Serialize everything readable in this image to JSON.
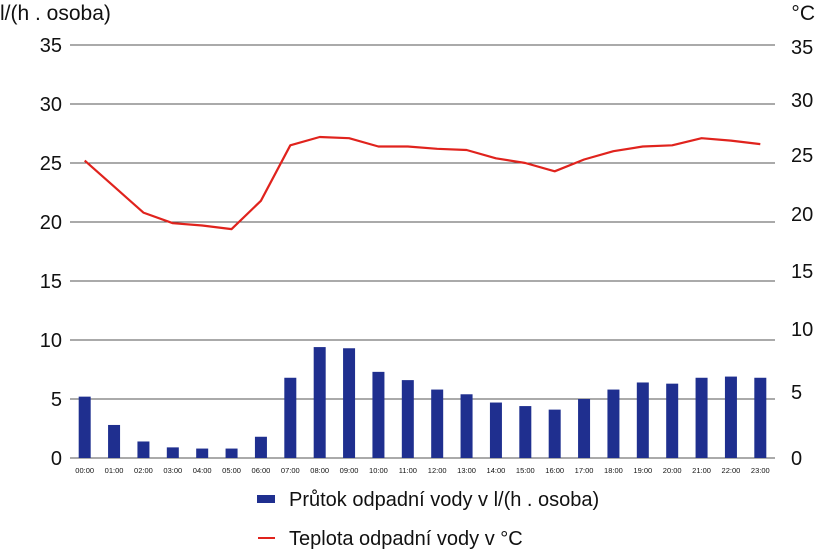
{
  "chart_data": {
    "type": "bar",
    "y_left_label": "l/(h . osoba)",
    "y_right_label": "°C",
    "y_left_ticks": [
      "0",
      "5",
      "10",
      "15",
      "20",
      "25",
      "30",
      "35"
    ],
    "y_right_ticks": [
      "0",
      "5",
      "10",
      "15",
      "20",
      "25",
      "30",
      "35"
    ],
    "y_left_range": [
      0,
      35
    ],
    "y_right_range": [
      0,
      35
    ],
    "grid": true,
    "legend_position": "bottom",
    "categories": [
      "00:00",
      "01:00",
      "02:00",
      "03:00",
      "04:00",
      "05:00",
      "06:00",
      "07:00",
      "08:00",
      "09:00",
      "10:00",
      "11:00",
      "12:00",
      "13:00",
      "14:00",
      "15:00",
      "16:00",
      "17:00",
      "18:00",
      "19:00",
      "20:00",
      "21:00",
      "22:00",
      "23:00"
    ],
    "series": [
      {
        "name": "Průtok odpadní vody v l/(h . osoba)",
        "type": "bar",
        "axis": "left",
        "color": "#1f2f8f",
        "values": [
          5.2,
          2.8,
          1.4,
          0.9,
          0.8,
          0.8,
          1.8,
          6.8,
          9.4,
          9.3,
          7.3,
          6.6,
          5.8,
          5.4,
          4.7,
          4.4,
          4.1,
          5.0,
          5.8,
          6.4,
          6.3,
          6.8,
          6.9,
          6.8
        ]
      },
      {
        "name": "Teplota odpadní vody v °C",
        "type": "line",
        "axis": "right",
        "color": "#e0231d",
        "values": [
          25.2,
          23.0,
          20.8,
          19.9,
          19.7,
          19.4,
          21.8,
          26.5,
          27.2,
          27.1,
          26.4,
          26.4,
          26.2,
          26.1,
          25.4,
          25.0,
          24.3,
          25.3,
          26.0,
          26.4,
          26.5,
          27.1,
          26.9,
          26.6
        ]
      }
    ]
  }
}
